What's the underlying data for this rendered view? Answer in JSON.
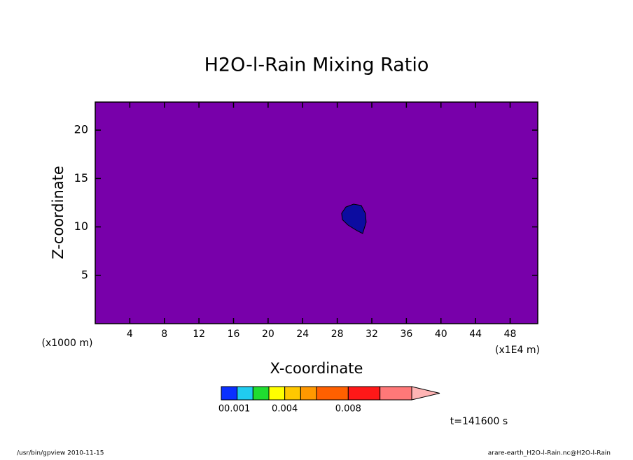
{
  "chart_data": {
    "type": "contour",
    "title": "H2O-l-Rain Mixing Ratio",
    "xlabel": "X-coordinate",
    "ylabel": "Z-coordinate",
    "xunit": "(x1E4 m)",
    "yunit": "(x1000 m)",
    "xlim": [
      0,
      51.2
    ],
    "ylim": [
      0,
      22.9
    ],
    "xticks": [
      4,
      8,
      12,
      16,
      20,
      24,
      28,
      32,
      36,
      40,
      44,
      48
    ],
    "yticks": [
      5,
      10,
      15,
      20
    ],
    "background_color": "#7800aa",
    "region": {
      "color": "#0c0ca0",
      "x": [
        29.89,
        30.78,
        31.26,
        31.34,
        30.94,
        30.29,
        29.24,
        28.59,
        28.51,
        29.0
      ],
      "z": [
        12.35,
        12.21,
        11.41,
        10.48,
        9.32,
        9.61,
        10.19,
        10.76,
        11.41,
        12.06
      ]
    },
    "colorbar": {
      "levels": [
        0,
        0.001,
        0.002,
        0.003,
        0.004,
        0.005,
        0.006,
        0.008,
        0.01,
        0.012
      ],
      "colors": [
        "#0a30ff",
        "#20ccf0",
        "#20dd30",
        "#ffff00",
        "#ffc800",
        "#ff9800",
        "#ff6000",
        "#ff1818",
        "#ff7878"
      ],
      "extend_color": "#ffb4b4",
      "ticks": [
        0,
        0.001,
        0.004,
        0.008
      ]
    },
    "annotation": "t=141600 s",
    "footer_left": "/usr/bin/gpview  2010-11-15",
    "footer_right": "arare-earth_H2O-l-Rain.nc@H2O-l-Rain"
  }
}
